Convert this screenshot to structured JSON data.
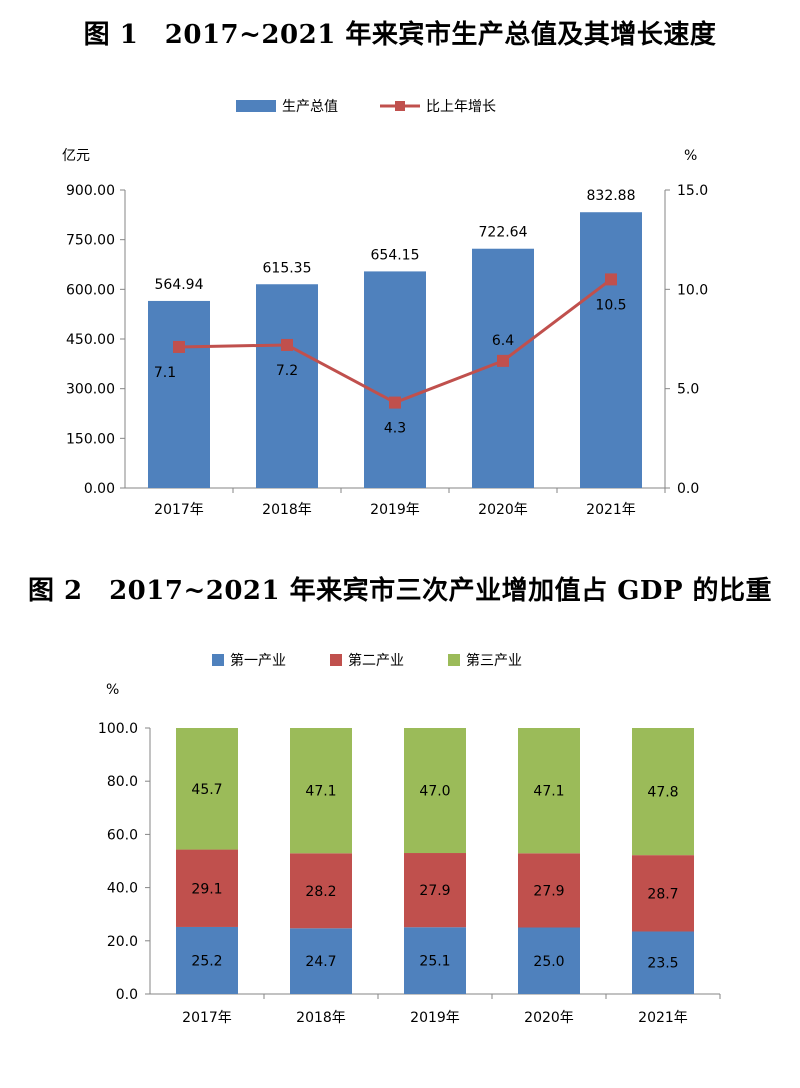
{
  "figure1": {
    "title": "图 1　2017~2021 年来宾市生产总值及其增长速度"
  },
  "figure2": {
    "title": "图 2　2017~2021 年来宾市三次产业增加值占 GDP 的比重"
  },
  "chart_data": [
    {
      "type": "bar",
      "title": "图 1　2017~2021 年来宾市生产总值及其增长速度",
      "categories": [
        "2017年",
        "2018年",
        "2019年",
        "2020年",
        "2021年"
      ],
      "y_unit": "亿元",
      "y2_unit": "%",
      "ylim": [
        0,
        900
      ],
      "y_ticks": [
        "0.00",
        "150.00",
        "300.00",
        "450.00",
        "600.00",
        "750.00",
        "900.00"
      ],
      "y2lim": [
        0,
        15
      ],
      "y2_ticks": [
        "0.0",
        "5.0",
        "10.0",
        "15.0"
      ],
      "legend_position": "top-center",
      "series": [
        {
          "name": "生产总值",
          "kind": "bar",
          "axis": "left",
          "color": "#4F81BD",
          "values": [
            564.94,
            615.35,
            654.15,
            722.64,
            832.88
          ],
          "labels": [
            "564.94",
            "615.35",
            "654.15",
            "722.64",
            "832.88"
          ]
        },
        {
          "name": "比上年增长",
          "kind": "line",
          "axis": "right",
          "color": "#C0504D",
          "values": [
            7.1,
            7.2,
            4.3,
            6.4,
            10.5
          ],
          "labels": [
            "7.1",
            "7.2",
            "4.3",
            "6.4",
            "10.5"
          ]
        }
      ]
    },
    {
      "type": "bar",
      "stacked": true,
      "title": "图 2　2017~2021 年来宾市三次产业增加值占 GDP 的比重",
      "categories": [
        "2017年",
        "2018年",
        "2019年",
        "2020年",
        "2021年"
      ],
      "y_unit": "%",
      "ylim": [
        0,
        100
      ],
      "y_ticks": [
        "0.0",
        "20.0",
        "40.0",
        "60.0",
        "80.0",
        "100.0"
      ],
      "legend_position": "top-center",
      "series": [
        {
          "name": "第一产业",
          "color": "#4F81BD",
          "values": [
            25.2,
            24.7,
            25.1,
            25.0,
            23.5
          ],
          "labels": [
            "25.2",
            "24.7",
            "25.1",
            "25.0",
            "23.5"
          ]
        },
        {
          "name": "第二产业",
          "color": "#C0504D",
          "values": [
            29.1,
            28.2,
            27.9,
            27.9,
            28.7
          ],
          "labels": [
            "29.1",
            "28.2",
            "27.9",
            "27.9",
            "28.7"
          ]
        },
        {
          "name": "第三产业",
          "color": "#9BBB59",
          "values": [
            45.7,
            47.1,
            47.0,
            47.1,
            47.8
          ],
          "labels": [
            "45.7",
            "47.1",
            "47.0",
            "47.1",
            "47.8"
          ]
        }
      ]
    }
  ]
}
